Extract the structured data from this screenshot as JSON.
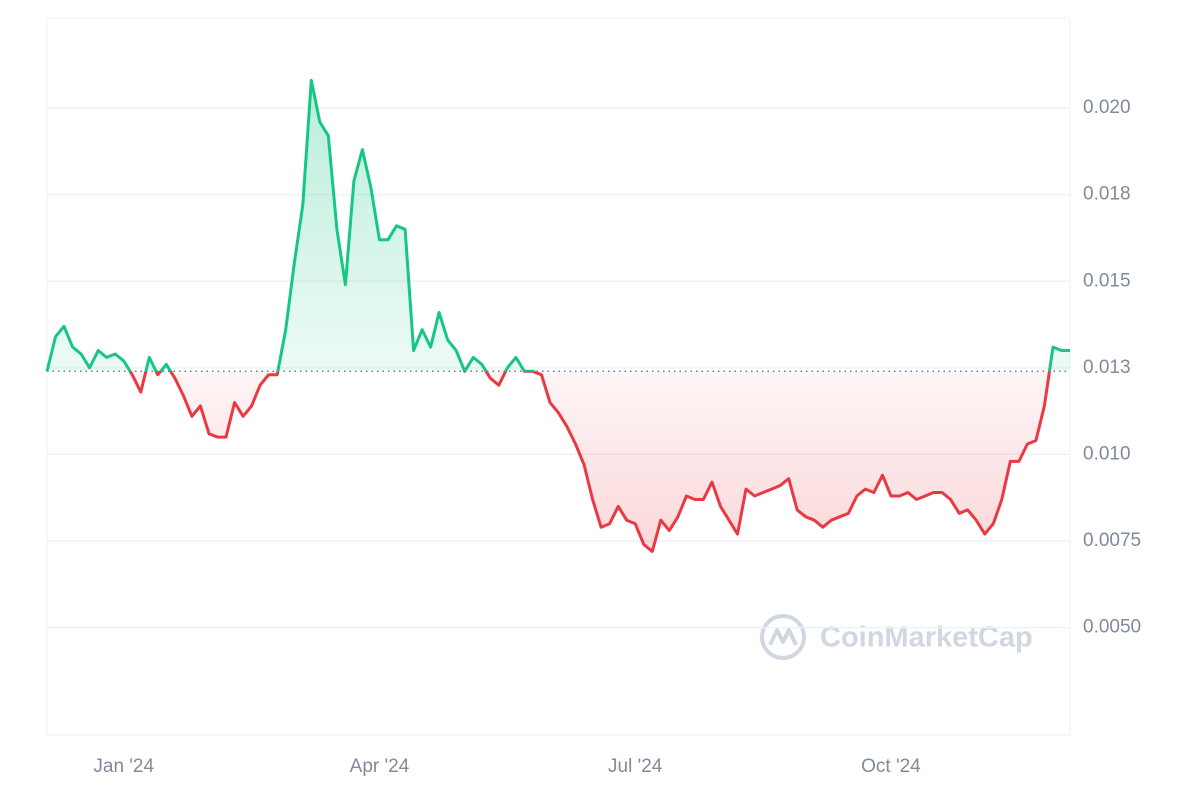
{
  "chart_data": {
    "type": "line",
    "watermark": "CoinMarketCap",
    "categories": [
      null,
      null,
      null,
      null,
      null,
      null,
      null,
      null,
      null,
      "Jan '24",
      null,
      null,
      null,
      null,
      null,
      null,
      null,
      null,
      null,
      null,
      null,
      null,
      null,
      null,
      null,
      null,
      null,
      null,
      null,
      null,
      null,
      null,
      null,
      null,
      null,
      null,
      null,
      null,
      null,
      "Apr '24",
      null,
      null,
      null,
      null,
      null,
      null,
      null,
      null,
      null,
      null,
      null,
      null,
      null,
      null,
      null,
      null,
      null,
      null,
      null,
      null,
      null,
      null,
      null,
      null,
      null,
      null,
      null,
      null,
      null,
      "Jul '24",
      null,
      null,
      null,
      null,
      null,
      null,
      null,
      null,
      null,
      null,
      null,
      null,
      null,
      null,
      null,
      null,
      null,
      null,
      null,
      null,
      null,
      null,
      null,
      null,
      null,
      null,
      null,
      null,
      null,
      "Oct '24",
      null,
      null,
      null,
      null,
      null,
      null,
      null,
      null,
      null,
      null,
      null,
      null,
      null,
      null,
      null,
      null,
      null,
      null,
      null,
      null,
      null
    ],
    "values": [
      0.0124,
      0.0134,
      0.0137,
      0.0131,
      0.0129,
      0.0125,
      0.013,
      0.0128,
      0.0129,
      0.0127,
      0.0123,
      0.0118,
      0.0128,
      0.0123,
      0.0126,
      0.0122,
      0.0117,
      0.0111,
      0.0114,
      0.0106,
      0.0105,
      0.0105,
      0.0115,
      0.0111,
      0.0114,
      0.012,
      0.0123,
      0.0123,
      0.0136,
      0.0155,
      0.0172,
      0.0208,
      0.0196,
      0.0192,
      0.0165,
      0.0149,
      0.0179,
      0.0188,
      0.0177,
      0.0162,
      0.0162,
      0.0166,
      0.0165,
      0.013,
      0.0136,
      0.0131,
      0.0141,
      0.0133,
      0.013,
      0.0124,
      0.0128,
      0.0126,
      0.0122,
      0.012,
      0.0125,
      0.0128,
      0.0124,
      0.0124,
      0.0123,
      0.0115,
      0.0112,
      0.0108,
      0.0103,
      0.0097,
      0.0087,
      0.0079,
      0.008,
      0.0085,
      0.0081,
      0.008,
      0.0074,
      0.0072,
      0.0081,
      0.0078,
      0.0082,
      0.0088,
      0.0087,
      0.0087,
      0.0092,
      0.0085,
      0.0081,
      0.0077,
      0.009,
      0.0088,
      0.0089,
      0.009,
      0.0091,
      0.0093,
      0.0084,
      0.0082,
      0.0081,
      0.0079,
      0.0081,
      0.0082,
      0.0083,
      0.0088,
      0.009,
      0.0089,
      0.0094,
      0.0088,
      0.0088,
      0.0089,
      0.0087,
      0.0088,
      0.0089,
      0.0089,
      0.0087,
      0.0083,
      0.0084,
      0.0081,
      0.0077,
      0.008,
      0.0087,
      0.0098,
      0.0098,
      0.0103,
      0.0104,
      0.0114,
      0.0131,
      0.013,
      0.013
    ],
    "up_color": "#16c784",
    "down_color": "#ea3943",
    "ylim": [
      0.0019,
      0.0226
    ],
    "yticks": [
      {
        "value": 0.005,
        "label": "0.0050"
      },
      0.0075,
      {
        "value": 0.01,
        "label": "0.010"
      },
      {
        "value": 0.0125,
        "label": "0.013"
      },
      0.015,
      {
        "value": 0.0175,
        "label": "0.018"
      },
      {
        "value": 0.02,
        "label": "0.020"
      }
    ],
    "grid": true
  }
}
